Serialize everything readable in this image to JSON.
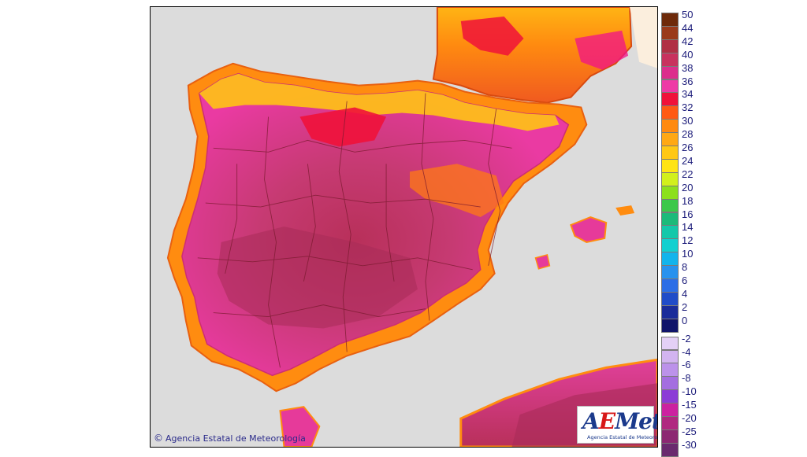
{
  "map": {
    "copyright": "Agencia Estatal de Meteorología",
    "logo": {
      "part1": "A",
      "part2": "E",
      "part3": "Met",
      "subtitle": "Agencia Estatal de Meteorología"
    },
    "colors": {
      "background": "#dcdcdc",
      "sea": "#dcdcdc",
      "boundaries": "#7a1a2e"
    }
  },
  "legend": {
    "upper": [
      {
        "label": "50",
        "color": "#6e2a0a"
      },
      {
        "label": "44",
        "color": "#9a3a1a"
      },
      {
        "label": "42",
        "color": "#b03044"
      },
      {
        "label": "40",
        "color": "#c8325e"
      },
      {
        "label": "38",
        "color": "#dc2e8c"
      },
      {
        "label": "36",
        "color": "#ee3aa6"
      },
      {
        "label": "34",
        "color": "#f0123a"
      },
      {
        "label": "32",
        "color": "#ff5a14"
      },
      {
        "label": "30",
        "color": "#ff8a10"
      },
      {
        "label": "28",
        "color": "#ffa814"
      },
      {
        "label": "26",
        "color": "#ffc814"
      },
      {
        "label": "24",
        "color": "#ffe414"
      },
      {
        "label": "22",
        "color": "#d2f01c"
      },
      {
        "label": "20",
        "color": "#8ce01c"
      },
      {
        "label": "18",
        "color": "#3cc84a"
      },
      {
        "label": "16",
        "color": "#1cba7a"
      },
      {
        "label": "14",
        "color": "#14c8aa"
      },
      {
        "label": "12",
        "color": "#12d0d0"
      },
      {
        "label": "10",
        "color": "#12b4ec"
      },
      {
        "label": "8",
        "color": "#2892ee"
      },
      {
        "label": "6",
        "color": "#2c6ee6"
      },
      {
        "label": "4",
        "color": "#204cc8"
      },
      {
        "label": "2",
        "color": "#1a2c9a"
      },
      {
        "label": "0",
        "color": "#10146a"
      }
    ],
    "lower": [
      {
        "label": "-2",
        "color": "#e4d0f6"
      },
      {
        "label": "-4",
        "color": "#d2b4f0"
      },
      {
        "label": "-6",
        "color": "#bc92ea"
      },
      {
        "label": "-8",
        "color": "#a46ee0"
      },
      {
        "label": "-10",
        "color": "#8c3cd6"
      },
      {
        "label": "-15",
        "color": "#cc22a0"
      },
      {
        "label": "-20",
        "color": "#b02880"
      },
      {
        "label": "-25",
        "color": "#8c2872"
      },
      {
        "label": "-30",
        "color": "#6a2a6e"
      }
    ]
  }
}
